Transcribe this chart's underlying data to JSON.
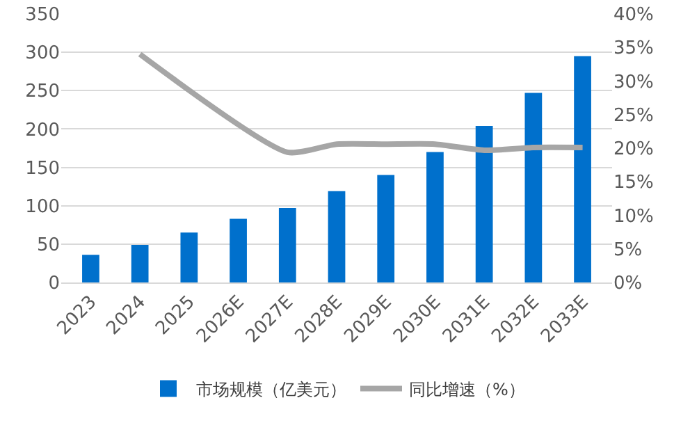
{
  "chart_data": {
    "type": "bar",
    "categories": [
      "2023",
      "2024",
      "2025",
      "2026E",
      "2027E",
      "2028E",
      "2029E",
      "2030E",
      "2031E",
      "2032E",
      "2033E"
    ],
    "series": [
      {
        "name": "市场规模（亿美元）",
        "color": "#0070cc",
        "values": [
          36,
          49,
          65,
          83,
          97,
          119,
          140,
          170,
          204,
          247,
          295
        ]
      },
      {
        "name": "同比增速（%）",
        "type": "line",
        "axis": "y2",
        "color": "#a6a6a6",
        "values": [
          null,
          34,
          null,
          null,
          19.4,
          20.6,
          20.6,
          20.6,
          19.7,
          20.1,
          20.1
        ]
      }
    ],
    "ylim": [
      0,
      350
    ],
    "yticks": [
      0,
      50,
      100,
      150,
      200,
      250,
      300,
      350
    ],
    "y2lim": [
      0,
      40
    ],
    "y2ticks": [
      {
        "value": 0,
        "label": "0%"
      },
      {
        "value": 5,
        "label": "5%"
      },
      {
        "value": 10,
        "label": "10%"
      },
      {
        "value": 15,
        "label": "15%"
      },
      {
        "value": 20,
        "label": "20%"
      },
      {
        "value": 25,
        "label": "25%"
      },
      {
        "value": 30,
        "label": "30%"
      },
      {
        "value": 35,
        "label": "35%"
      },
      {
        "value": 40,
        "label": "40%"
      }
    ],
    "grid": "y",
    "legend": "bottom",
    "marker": "none",
    "line_style": "solid"
  }
}
